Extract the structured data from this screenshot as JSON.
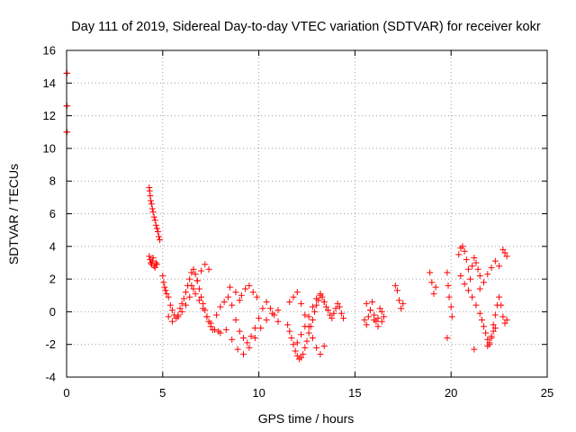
{
  "chart_data": {
    "type": "scatter",
    "title": "Day 111 of 2019, Sidereal Day-to-day VTEC variation (SDTVAR) for receiver kokr",
    "xlabel": "GPS time / hours",
    "ylabel": "SDTVAR / TECUs",
    "xlim": [
      0,
      25
    ],
    "ylim": [
      -4,
      16
    ],
    "xticks": [
      "0",
      "5",
      "10",
      "15",
      "20",
      "25"
    ],
    "yticks": [
      "-4",
      "-2",
      "0",
      "2",
      "4",
      "6",
      "8",
      "10",
      "12",
      "14",
      "16"
    ],
    "grid": true,
    "marker": "+",
    "color": "#ff0000",
    "series": [
      {
        "name": "SDTVAR",
        "x": [
          0.0,
          0.02,
          0.0,
          0.02,
          0.0,
          0.02,
          4.3,
          4.32,
          4.35,
          4.38,
          4.42,
          4.46,
          4.5,
          4.55,
          4.6,
          4.65,
          4.7,
          4.75,
          4.8,
          4.85,
          4.3,
          4.34,
          4.38,
          4.42,
          4.46,
          4.5,
          4.55,
          4.6,
          4.65,
          4.7,
          5.0,
          5.05,
          5.1,
          5.15,
          5.2,
          5.3,
          5.4,
          5.5,
          5.6,
          5.7,
          5.8,
          5.9,
          6.0,
          6.1,
          6.2,
          6.3,
          6.4,
          6.5,
          6.6,
          6.7,
          6.8,
          6.9,
          7.0,
          7.1,
          7.2,
          7.3,
          7.4,
          7.5,
          7.6,
          5.3,
          5.5,
          5.8,
          6.0,
          6.2,
          6.4,
          6.6,
          6.8,
          7.0,
          7.2,
          7.4,
          6.5,
          6.7,
          6.9,
          7.1,
          7.3,
          7.5,
          7.7,
          7.9,
          7.8,
          8.0,
          8.2,
          8.4,
          8.6,
          8.8,
          9.0,
          9.2,
          9.4,
          9.6,
          9.8,
          10.0,
          10.2,
          10.4,
          10.6,
          10.8,
          11.0,
          8.0,
          8.3,
          8.6,
          8.9,
          9.2,
          9.5,
          9.8,
          10.1,
          10.4,
          10.7,
          11.0,
          8.5,
          8.8,
          9.0,
          9.1,
          9.3,
          9.5,
          9.7,
          9.9,
          11.5,
          11.6,
          11.7,
          11.8,
          11.9,
          12.0,
          12.1,
          12.2,
          12.3,
          12.4,
          12.5,
          12.6,
          12.7,
          12.8,
          12.9,
          13.0,
          13.1,
          13.2,
          13.3,
          13.4,
          13.5,
          13.6,
          13.7,
          13.8,
          13.9,
          14.0,
          14.1,
          14.2,
          14.3,
          14.4,
          11.6,
          11.8,
          12.0,
          12.2,
          12.4,
          12.6,
          12.8,
          13.0,
          13.2,
          13.4,
          12.0,
          12.2,
          12.4,
          12.6,
          12.8,
          13.0,
          13.2,
          13.4,
          13.6,
          15.5,
          15.6,
          15.7,
          15.8,
          15.9,
          16.0,
          16.1,
          16.2,
          16.3,
          16.4,
          16.5,
          15.6,
          15.8,
          16.0,
          16.2,
          16.4,
          17.1,
          17.2,
          17.3,
          17.4,
          17.5,
          18.9,
          19.0,
          19.1,
          19.2,
          19.8,
          19.85,
          19.9,
          20.0,
          20.05,
          20.4,
          20.5,
          20.6,
          20.7,
          20.8,
          20.9,
          21.0,
          21.1,
          21.2,
          21.3,
          21.4,
          21.5,
          20.5,
          20.7,
          20.9,
          21.1,
          21.3,
          21.5,
          21.6,
          21.7,
          21.8,
          21.9,
          22.0,
          22.1,
          22.2,
          22.3,
          22.4,
          22.5,
          22.6,
          22.7,
          22.8,
          22.9,
          21.5,
          21.7,
          21.9,
          22.1,
          22.3,
          22.5,
          21.9,
          22.0,
          22.1,
          22.2,
          22.3,
          22.7,
          22.8,
          22.9,
          21.2,
          19.8
        ],
        "y": [
          14.6,
          14.6,
          12.6,
          12.6,
          11.0,
          11.0,
          7.6,
          7.4,
          7.1,
          6.8,
          6.6,
          6.3,
          6.1,
          5.8,
          5.6,
          5.3,
          5.1,
          4.9,
          4.6,
          4.4,
          3.4,
          3.2,
          3.0,
          2.9,
          3.1,
          3.3,
          2.8,
          2.7,
          3.0,
          2.9,
          2.2,
          1.8,
          1.5,
          1.3,
          1.1,
          0.9,
          0.4,
          0.1,
          -0.2,
          -0.4,
          -0.2,
          0.2,
          0.5,
          0.8,
          1.2,
          1.6,
          2.0,
          2.4,
          2.6,
          2.3,
          1.9,
          1.4,
          0.9,
          0.5,
          0.1,
          -0.3,
          -0.6,
          -0.9,
          -1.1,
          -0.3,
          -0.6,
          -0.3,
          0.0,
          0.4,
          0.9,
          1.4,
          1.9,
          2.5,
          2.9,
          2.6,
          1.6,
          1.1,
          0.7,
          0.2,
          -0.3,
          -0.7,
          -1.1,
          -1.2,
          -0.2,
          0.3,
          0.6,
          0.9,
          0.4,
          -0.5,
          -1.2,
          -1.6,
          -1.9,
          -1.5,
          -1.0,
          -0.4,
          0.2,
          0.6,
          0.2,
          -0.2,
          -0.6,
          -1.3,
          -1.1,
          -1.7,
          -2.3,
          -2.6,
          -2.2,
          -1.6,
          -1.0,
          -0.5,
          -0.1,
          0.1,
          1.5,
          1.2,
          0.7,
          1.0,
          1.4,
          1.6,
          1.2,
          0.9,
          -0.8,
          -1.2,
          -1.6,
          -2.0,
          -2.4,
          -2.7,
          -2.9,
          -2.8,
          -2.6,
          -2.2,
          -1.8,
          -1.3,
          -0.9,
          -0.5,
          0.0,
          0.4,
          0.7,
          1.0,
          0.9,
          0.6,
          0.3,
          0.1,
          -0.2,
          -0.4,
          -0.1,
          0.2,
          0.5,
          0.3,
          -0.1,
          -0.4,
          0.6,
          0.9,
          1.2,
          0.5,
          -0.2,
          -0.9,
          -1.6,
          -2.2,
          -2.6,
          -2.1,
          -1.9,
          -1.4,
          -0.9,
          -0.3,
          0.3,
          0.8,
          1.1,
          0.6,
          0.1,
          -0.5,
          -0.8,
          -0.3,
          0.1,
          0.6,
          -0.2,
          -0.6,
          -0.4,
          0.2,
          0.0,
          -0.3,
          0.5,
          0.1,
          -0.5,
          -0.9,
          -0.6,
          1.6,
          1.3,
          0.7,
          0.2,
          0.5,
          2.4,
          1.8,
          1.1,
          1.5,
          2.4,
          1.6,
          0.9,
          0.3,
          -0.3,
          3.5,
          3.9,
          4.0,
          3.7,
          3.2,
          2.6,
          2.0,
          2.8,
          3.3,
          3.0,
          2.6,
          2.2,
          2.2,
          1.7,
          1.3,
          0.9,
          0.4,
          -0.1,
          -0.5,
          -0.9,
          -1.3,
          -1.7,
          -2.0,
          -1.5,
          -0.8,
          -0.2,
          0.4,
          0.9,
          0.4,
          -0.3,
          -0.7,
          -0.5,
          1.4,
          1.8,
          2.3,
          2.7,
          3.1,
          2.8,
          -2.1,
          -1.9,
          -1.6,
          -1.2,
          -1.0,
          3.8,
          3.6,
          3.4,
          -2.3,
          -1.6
        ]
      }
    ]
  }
}
